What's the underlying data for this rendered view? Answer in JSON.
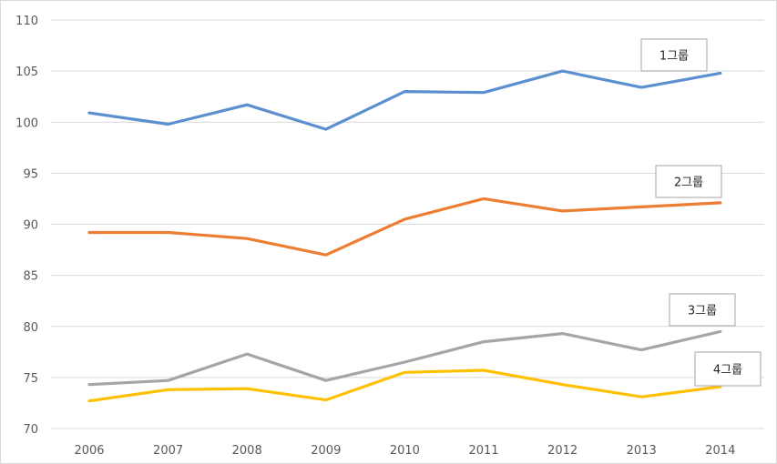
{
  "chart_data": {
    "type": "line",
    "title": "",
    "xlabel": "",
    "ylabel": "",
    "x": [
      "2006",
      "2007",
      "2008",
      "2009",
      "2010",
      "2011",
      "2012",
      "2013",
      "2014"
    ],
    "ylim": [
      70,
      110
    ],
    "yticks": [
      70,
      75,
      80,
      85,
      90,
      95,
      100,
      105,
      110
    ],
    "grid": true,
    "legend": "none",
    "series": [
      {
        "name": "1그룹",
        "color": "#5b8fd0",
        "values": [
          100.9,
          99.8,
          101.7,
          99.3,
          103.0,
          102.9,
          105.0,
          103.4,
          104.8
        ]
      },
      {
        "name": "2그룹",
        "color": "#ed7d31",
        "values": [
          89.2,
          89.2,
          88.6,
          87.0,
          90.5,
          92.5,
          91.3,
          91.7,
          92.1
        ]
      },
      {
        "name": "3그룹",
        "color": "#a5a5a5",
        "values": [
          74.3,
          74.7,
          77.3,
          74.7,
          76.5,
          78.5,
          79.3,
          77.7,
          79.5
        ]
      },
      {
        "name": "4그룹",
        "color": "#ffc000",
        "values": [
          72.7,
          73.8,
          73.9,
          72.8,
          75.5,
          75.7,
          74.3,
          73.1,
          74.1
        ]
      }
    ]
  }
}
